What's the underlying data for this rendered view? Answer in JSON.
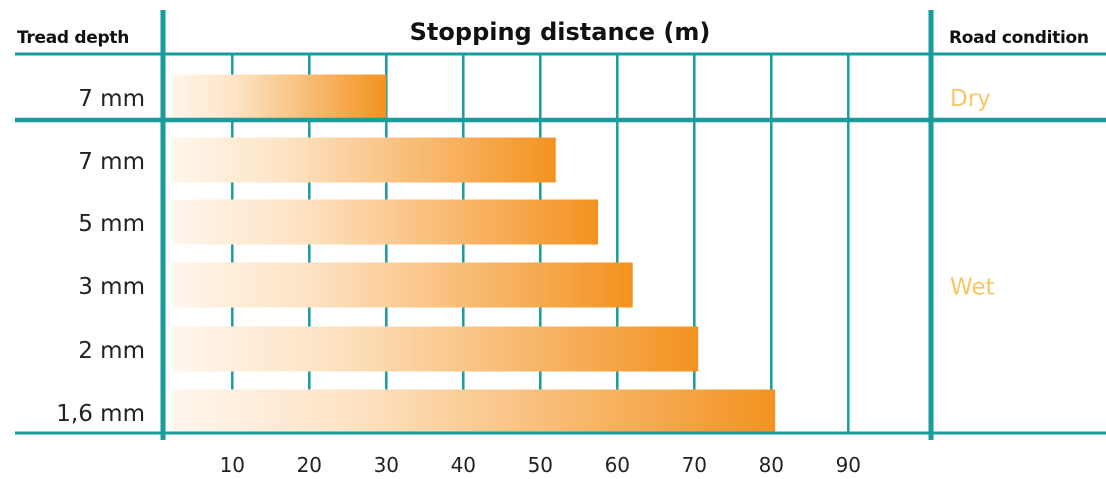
{
  "headers": {
    "left": "Tread depth",
    "title": "Stopping distance (m)",
    "right": "Road condition"
  },
  "colors": {
    "grid": "#1a9c9c",
    "bar_start": "#fff6ec",
    "bar_end": "#f39220",
    "condition_text": "#f7c766"
  },
  "chart_data": {
    "type": "bar",
    "orientation": "horizontal",
    "title": "Stopping distance (m)",
    "xlabel": "Stopping distance (m)",
    "ylabel": "Tread depth",
    "xlim": [
      1,
      100
    ],
    "xticks": [
      10,
      20,
      30,
      40,
      50,
      60,
      70,
      80,
      90
    ],
    "grid": true,
    "categories": [
      "7 mm",
      "7 mm",
      "5 mm",
      "3 mm",
      "2 mm",
      "1,6 mm"
    ],
    "values": [
      30,
      52,
      57.5,
      62,
      70.5,
      80.5
    ],
    "groups": [
      {
        "name": "Dry",
        "rows": [
          0
        ]
      },
      {
        "name": "Wet",
        "rows": [
          1,
          2,
          3,
          4,
          5
        ]
      }
    ]
  }
}
